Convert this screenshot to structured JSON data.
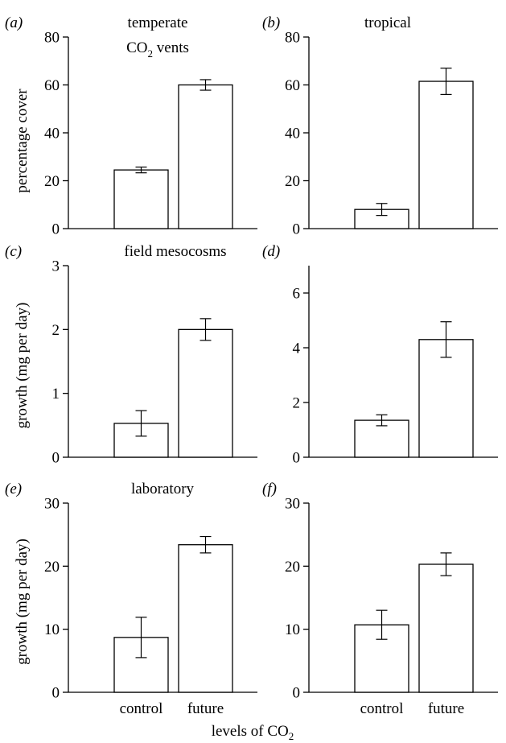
{
  "chart_data": [
    {
      "type": "bar",
      "panel_letter": "(a)",
      "title": "temperate",
      "subtitle_main": "CO",
      "subtitle_sub": "2",
      "subtitle_tail": " vents",
      "ylabel": "percentage cover",
      "categories": [
        "control",
        "future"
      ],
      "values": [
        24.5,
        60
      ],
      "errors": [
        1.2,
        2.2
      ],
      "ylim": [
        0,
        80
      ],
      "yticks": [
        0,
        20,
        40,
        60,
        80
      ]
    },
    {
      "type": "bar",
      "panel_letter": "(b)",
      "title": "tropical",
      "ylabel": "",
      "categories": [
        "control",
        "future"
      ],
      "values": [
        8,
        61.5
      ],
      "errors": [
        2.5,
        5.5
      ],
      "ylim": [
        0,
        80
      ],
      "yticks": [
        0,
        20,
        40,
        60,
        80
      ]
    },
    {
      "type": "bar",
      "panel_letter": "(c)",
      "title": "field mesocosms",
      "ylabel": "growth (mg per day)",
      "categories": [
        "control",
        "future"
      ],
      "values": [
        0.53,
        2.0
      ],
      "errors": [
        0.2,
        0.17
      ],
      "ylim": [
        0,
        3
      ],
      "yticks": [
        0,
        1,
        2,
        3
      ]
    },
    {
      "type": "bar",
      "panel_letter": "(d)",
      "title": "",
      "ylabel": "",
      "categories": [
        "control",
        "future"
      ],
      "values": [
        1.35,
        4.3
      ],
      "errors": [
        0.2,
        0.65
      ],
      "ylim": [
        0,
        7
      ],
      "yticks": [
        0,
        2,
        4,
        6
      ]
    },
    {
      "type": "bar",
      "panel_letter": "(e)",
      "title": "laboratory",
      "ylabel": "growth (mg per day)",
      "categories": [
        "control",
        "future"
      ],
      "values": [
        8.7,
        23.4
      ],
      "errors": [
        3.2,
        1.3
      ],
      "ylim": [
        0,
        30
      ],
      "yticks": [
        0,
        10,
        20,
        30
      ]
    },
    {
      "type": "bar",
      "panel_letter": "(f)",
      "title": "",
      "ylabel": "",
      "categories": [
        "control",
        "future"
      ],
      "values": [
        10.7,
        20.3
      ],
      "errors": [
        2.3,
        1.8
      ],
      "ylim": [
        0,
        30
      ],
      "yticks": [
        0,
        10,
        20,
        30
      ]
    }
  ],
  "xlabel_main": "levels of CO",
  "xlabel_sub": "2"
}
